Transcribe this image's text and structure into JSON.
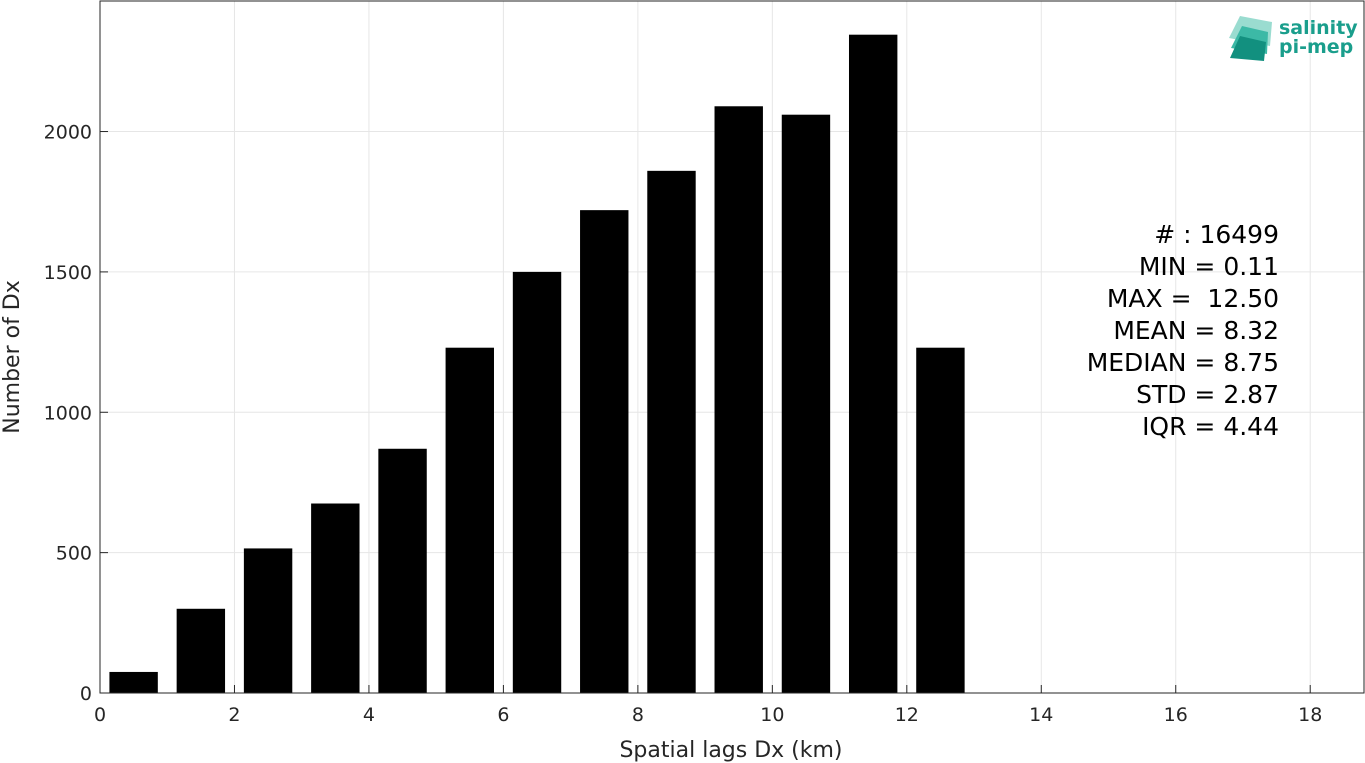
{
  "logo": {
    "line1": "salinity",
    "line2": "pi-mep",
    "color": "#1a9e8c"
  },
  "chart_data": {
    "type": "bar",
    "x": [
      0.5,
      1.5,
      2.5,
      3.5,
      4.5,
      5.5,
      6.5,
      7.5,
      8.5,
      9.5,
      10.5,
      11.5,
      12.5
    ],
    "values": [
      75,
      300,
      515,
      675,
      870,
      1230,
      1500,
      1720,
      1860,
      2090,
      2060,
      2345,
      1230
    ],
    "bar_width": 0.72,
    "bar_color": "#000000",
    "xlabel": "Spatial lags Dx (km)",
    "ylabel": "Number of Dx",
    "xlim": [
      0,
      18.8
    ],
    "ylim": [
      0,
      2465
    ],
    "xticks": [
      0,
      2,
      4,
      6,
      8,
      10,
      12,
      14,
      16,
      18
    ],
    "yticks": [
      0,
      500,
      1000,
      1500,
      2000
    ],
    "grid": true,
    "stats": [
      "# : 16499",
      "MIN = 0.11",
      "MAX =  12.50",
      "MEAN = 8.32",
      "MEDIAN = 8.75",
      "STD = 2.87",
      "IQR = 4.44"
    ]
  }
}
